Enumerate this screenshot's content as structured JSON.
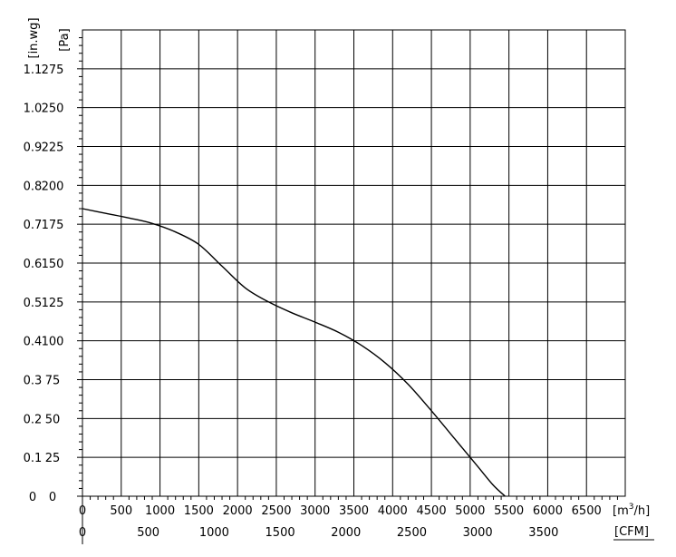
{
  "chart_data": {
    "type": "line",
    "title": "",
    "grid": true,
    "x_axis": {
      "unit_primary": "[m³/h]",
      "unit_primary_base": "[m",
      "unit_primary_sup": "3",
      "unit_primary_tail": "/h]",
      "unit_secondary": "[CFM]",
      "range": [
        0,
        7000
      ],
      "ticks": [
        0,
        500,
        1000,
        1500,
        2000,
        2500,
        3000,
        3500,
        4000,
        4500,
        5000,
        5500,
        6000,
        6500
      ],
      "tick_labels": [
        "0",
        "500",
        "1000",
        "1500",
        "2000",
        "2500",
        "3000",
        "3500",
        "4000",
        "4500",
        "5000",
        "5500",
        "6000",
        "6500"
      ],
      "secondary_ticks": [
        0,
        500,
        1000,
        1500,
        2000,
        2500,
        3000,
        3500
      ],
      "secondary_tick_labels": [
        "0",
        "500",
        "1000",
        "1500",
        "2000",
        "2500",
        "3000",
        "3500"
      ]
    },
    "y_axis": {
      "unit_primary": "[Pa]",
      "unit_secondary": "[in.wg]",
      "range": [
        0,
        300
      ],
      "ticks": [
        0,
        25,
        50,
        75,
        100,
        125,
        150,
        175,
        200,
        225,
        250,
        275
      ],
      "tick_labels": [
        "0",
        "25",
        "50",
        "75",
        "100",
        "125",
        "150",
        "175",
        "200",
        "225",
        "250",
        "275"
      ],
      "secondary_tick_labels": [
        "0",
        "0.1",
        "0.2",
        "0.3",
        "0.4",
        "0.5",
        "0.6",
        "0.7",
        "0.8",
        "0.9",
        "1.0",
        "1.1"
      ]
    },
    "series": [
      {
        "x": [
          0,
          300,
          600,
          900,
          1200,
          1500,
          1800,
          2100,
          2400,
          2700,
          3000,
          3300,
          3600,
          3900,
          4200,
          4500,
          4800,
          5100,
          5300,
          5450
        ],
        "y": [
          185,
          182,
          179,
          175.5,
          170,
          162,
          148,
          134,
          125,
          118,
          112,
          105.5,
          97,
          86,
          72,
          55,
          37,
          19,
          7,
          0
        ]
      }
    ]
  }
}
